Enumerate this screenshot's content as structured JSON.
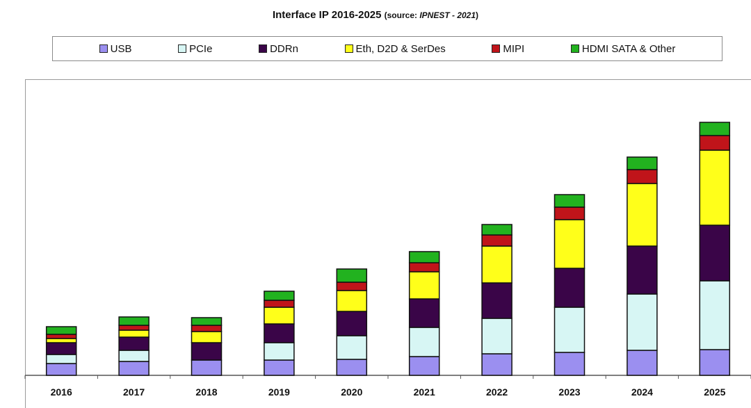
{
  "chart_data": {
    "type": "bar",
    "stacked": true,
    "title": "Interface IP  2016-2025",
    "subtitle_prefix": "(source: ",
    "subtitle_italic": "IPNEST - 2021",
    "subtitle_suffix": ")",
    "categories": [
      "2016",
      "2017",
      "2018",
      "2019",
      "2020",
      "2021",
      "2022",
      "2023",
      "2024",
      "2025"
    ],
    "series": [
      {
        "name": "USB",
        "color": "#9b8ff0",
        "values": [
          17,
          20,
          22,
          22,
          23,
          27,
          31,
          33,
          36,
          37
        ]
      },
      {
        "name": "PCIe",
        "color": "#d7f6f4",
        "values": [
          13,
          16,
          0,
          25,
          34,
          42,
          51,
          65,
          81,
          99
        ]
      },
      {
        "name": "DDRn",
        "color": "#3a0548",
        "values": [
          17,
          19,
          25,
          27,
          35,
          41,
          51,
          56,
          69,
          80
        ]
      },
      {
        "name": "Eth, D2D & SerDes",
        "color": "#ffff1a",
        "values": [
          6,
          10,
          16,
          24,
          30,
          39,
          53,
          70,
          90,
          108
        ]
      },
      {
        "name": "MIPI",
        "color": "#c0141a",
        "values": [
          6,
          7,
          9,
          10,
          12,
          13,
          16,
          18,
          20,
          21
        ]
      },
      {
        "name": "HDMI SATA & Other",
        "color": "#22b21f",
        "values": [
          11,
          12,
          11,
          13,
          19,
          16,
          15,
          18,
          18,
          19
        ]
      }
    ],
    "ylim": [
      0,
      390
    ],
    "legend_position": "top",
    "grid": false
  }
}
